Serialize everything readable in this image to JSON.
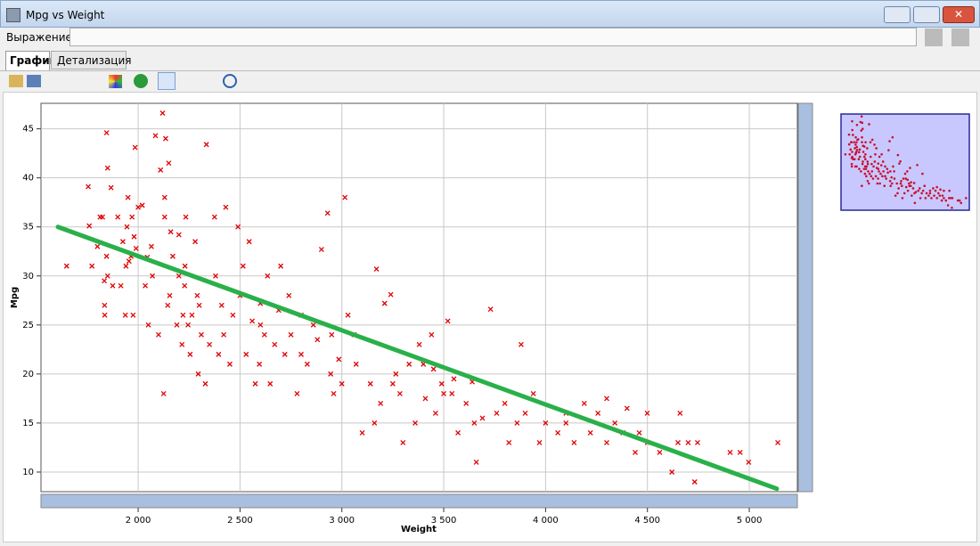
{
  "window": {
    "title": "Mpg vs Weight"
  },
  "expression_label": "Выражение:",
  "tabs": [
    "График",
    "Детализация"
  ],
  "chart_data": {
    "type": "scatter",
    "x_label": "Weight",
    "y_label": "Mpg",
    "color": "#e00000",
    "grid": true,
    "xlim": [
      1523,
      5236
    ],
    "ylim": [
      8,
      47.6
    ],
    "xticks": [
      {
        "value": 2000,
        "label": "2 000"
      },
      {
        "value": 2500,
        "label": "2 500"
      },
      {
        "value": 3000,
        "label": "3 000"
      },
      {
        "value": 3500,
        "label": "3 500"
      },
      {
        "value": 4000,
        "label": "4 000"
      },
      {
        "value": 4500,
        "label": "4 500"
      },
      {
        "value": 5000,
        "label": "5 000"
      }
    ],
    "yticks": [
      10,
      15,
      20,
      25,
      30,
      35,
      40,
      45
    ],
    "x": [
      1649,
      1755,
      1760,
      1773,
      1800,
      1813,
      1825,
      1834,
      1835,
      1836,
      1845,
      1845,
      1850,
      1867,
      1875,
      1850,
      1900,
      1915,
      1925,
      1937,
      1940,
      1945,
      1950,
      1955,
      1965,
      1970,
      1975,
      1980,
      1985,
      1990,
      2000,
      2020,
      2035,
      2045,
      2050,
      2065,
      2070,
      2085,
      2100,
      2110,
      2120,
      2125,
      2130,
      2130,
      2135,
      2145,
      2150,
      2155,
      2160,
      2170,
      2190,
      2200,
      2200,
      2215,
      2220,
      2228,
      2230,
      2234,
      2245,
      2255,
      2264,
      2280,
      2290,
      2295,
      2300,
      2310,
      2330,
      2335,
      2350,
      2375,
      2380,
      2395,
      2410,
      2420,
      2430,
      2450,
      2465,
      2490,
      2500,
      2515,
      2530,
      2545,
      2560,
      2575,
      2595,
      2600,
      2620,
      2635,
      2648,
      2670,
      2690,
      2700,
      2720,
      2740,
      2750,
      2780,
      2800,
      2830,
      2860,
      2880,
      2900,
      2930,
      2945,
      2960,
      2985,
      3015,
      3030,
      3060,
      3070,
      3100,
      3140,
      3160,
      3170,
      3190,
      3210,
      3240,
      3265,
      3285,
      3300,
      3330,
      3360,
      3380,
      3410,
      3440,
      3460,
      3490,
      3520,
      3540,
      3570,
      3610,
      3640,
      3660,
      3690,
      3730,
      3760,
      3820,
      3860,
      3880,
      3900,
      3940,
      3970,
      4000,
      4060,
      4100,
      4140,
      4190,
      4220,
      4257,
      4300,
      4340,
      4380,
      4400,
      4440,
      4460,
      4499,
      4560,
      4620,
      4650,
      4660,
      4700,
      4732,
      4746,
      4906,
      4955,
      4997,
      5140,
      3500,
      3550,
      3450,
      3000,
      2950,
      2800,
      2600,
      4500,
      4300,
      4100,
      3800,
      3650,
      3400,
      3250
    ],
    "values": [
      31,
      39.1,
      35.1,
      31,
      33,
      36,
      36,
      29.5,
      27,
      26,
      44.6,
      32,
      30,
      39,
      29,
      41,
      36,
      29,
      33.5,
      26,
      31,
      35,
      38,
      31.5,
      32,
      36,
      26,
      34,
      43.1,
      32.8,
      37,
      37.2,
      29,
      31.9,
      25,
      33,
      30,
      44.3,
      24,
      40.8,
      46.6,
      18,
      38,
      36,
      44,
      27,
      41.5,
      28,
      34.5,
      32,
      25,
      30,
      34.2,
      23,
      26,
      29,
      31,
      36,
      25,
      22,
      26,
      33.5,
      28,
      20,
      27,
      24,
      19,
      43.4,
      23,
      36,
      30,
      22,
      27,
      24,
      37,
      21,
      26,
      35,
      28,
      31,
      22,
      33.5,
      25.4,
      19,
      21,
      27.2,
      24,
      30,
      19,
      23,
      26.5,
      31,
      22,
      28,
      24,
      18,
      26,
      21,
      25,
      23.5,
      32.7,
      36.4,
      20,
      18,
      21.5,
      38,
      26,
      24,
      21,
      14,
      19,
      15,
      30.7,
      17,
      27.2,
      28.1,
      20,
      18,
      13,
      21,
      15,
      23,
      17.5,
      24,
      16,
      19,
      25.4,
      18,
      14,
      17,
      19.2,
      11,
      15.5,
      26.6,
      16,
      13,
      15,
      23,
      16,
      18,
      13,
      15,
      14,
      16,
      13,
      17,
      14,
      16,
      13,
      15,
      14,
      16.5,
      12,
      14,
      16,
      12,
      10,
      13,
      16,
      13,
      9,
      13,
      12,
      12,
      11,
      13,
      18,
      19.5,
      20.5,
      19,
      24,
      22,
      25,
      13,
      17.5,
      15,
      17,
      15,
      21,
      19
    ],
    "fit": {
      "color": "#2ab04a",
      "x": [
        1606,
        5135
      ],
      "values": [
        35,
        8.3
      ]
    }
  }
}
